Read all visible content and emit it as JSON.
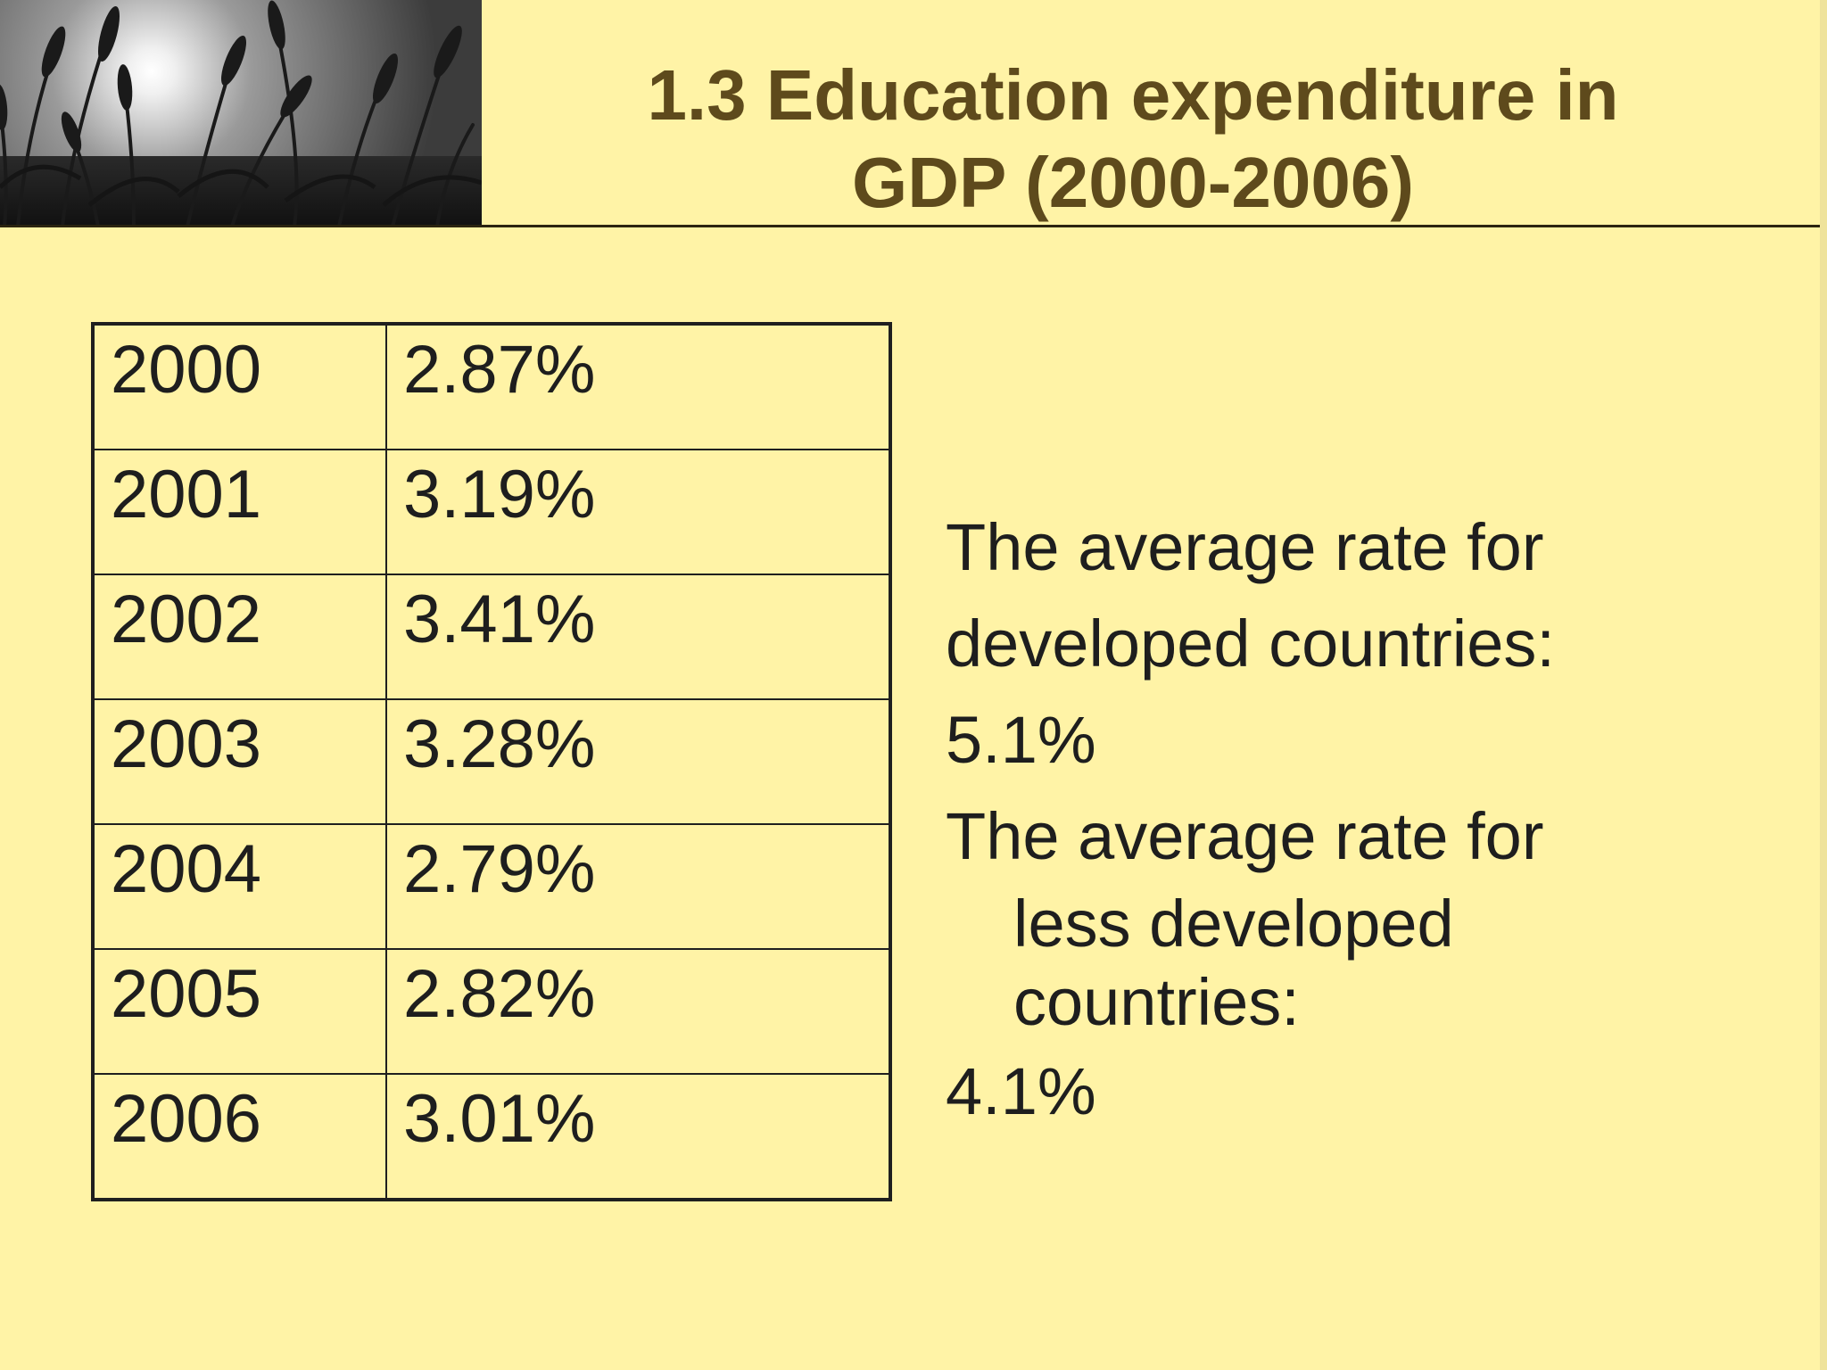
{
  "slide": {
    "title_line1": "1.3 Education expenditure in",
    "title_line2": "GDP (2000-2006)"
  },
  "table": {
    "rows": [
      {
        "year": "2000",
        "value": "2.87%"
      },
      {
        "year": "2001",
        "value": "3.19%"
      },
      {
        "year": "2002",
        "value": "3.41%"
      },
      {
        "year": "2003",
        "value": "3.28%"
      },
      {
        "year": "2004",
        "value": "2.79%"
      },
      {
        "year": "2005",
        "value": "2.82%"
      },
      {
        "year": "2006",
        "value": "3.01%"
      }
    ]
  },
  "notes": {
    "developed_line1": "The average rate for",
    "developed_line2": "developed countries:",
    "developed_value": "5.1%",
    "less_line1": "The average rate for",
    "less_line2": "less developed",
    "less_line3": "countries:",
    "less_value": "4.1%"
  },
  "colors": {
    "background": "#fff3a6",
    "title": "#5e4a1c",
    "text": "#1e1e1e"
  },
  "icons": {
    "header_image": "wheat-field-photo"
  }
}
